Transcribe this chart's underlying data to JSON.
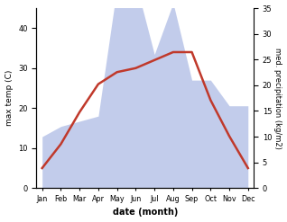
{
  "months": [
    "Jan",
    "Feb",
    "Mar",
    "Apr",
    "May",
    "Jun",
    "Jul",
    "Aug",
    "Sep",
    "Oct",
    "Nov",
    "Dec"
  ],
  "temp": [
    5,
    11,
    19,
    26,
    29,
    30,
    32,
    34,
    34,
    22,
    13,
    5
  ],
  "precip": [
    10,
    12,
    13,
    14,
    39,
    40,
    26,
    36,
    21,
    21,
    16,
    16
  ],
  "temp_color": "#c0392b",
  "precip_fill_color": "#b8c4e8",
  "temp_ylim": [
    0,
    45
  ],
  "precip_ylim": [
    0,
    35
  ],
  "temp_yticks": [
    0,
    10,
    20,
    30,
    40
  ],
  "precip_yticks": [
    0,
    5,
    10,
    15,
    20,
    25,
    30,
    35
  ],
  "xlabel": "date (month)",
  "ylabel_left": "max temp (C)",
  "ylabel_right": "med. precipitation (kg/m2)"
}
